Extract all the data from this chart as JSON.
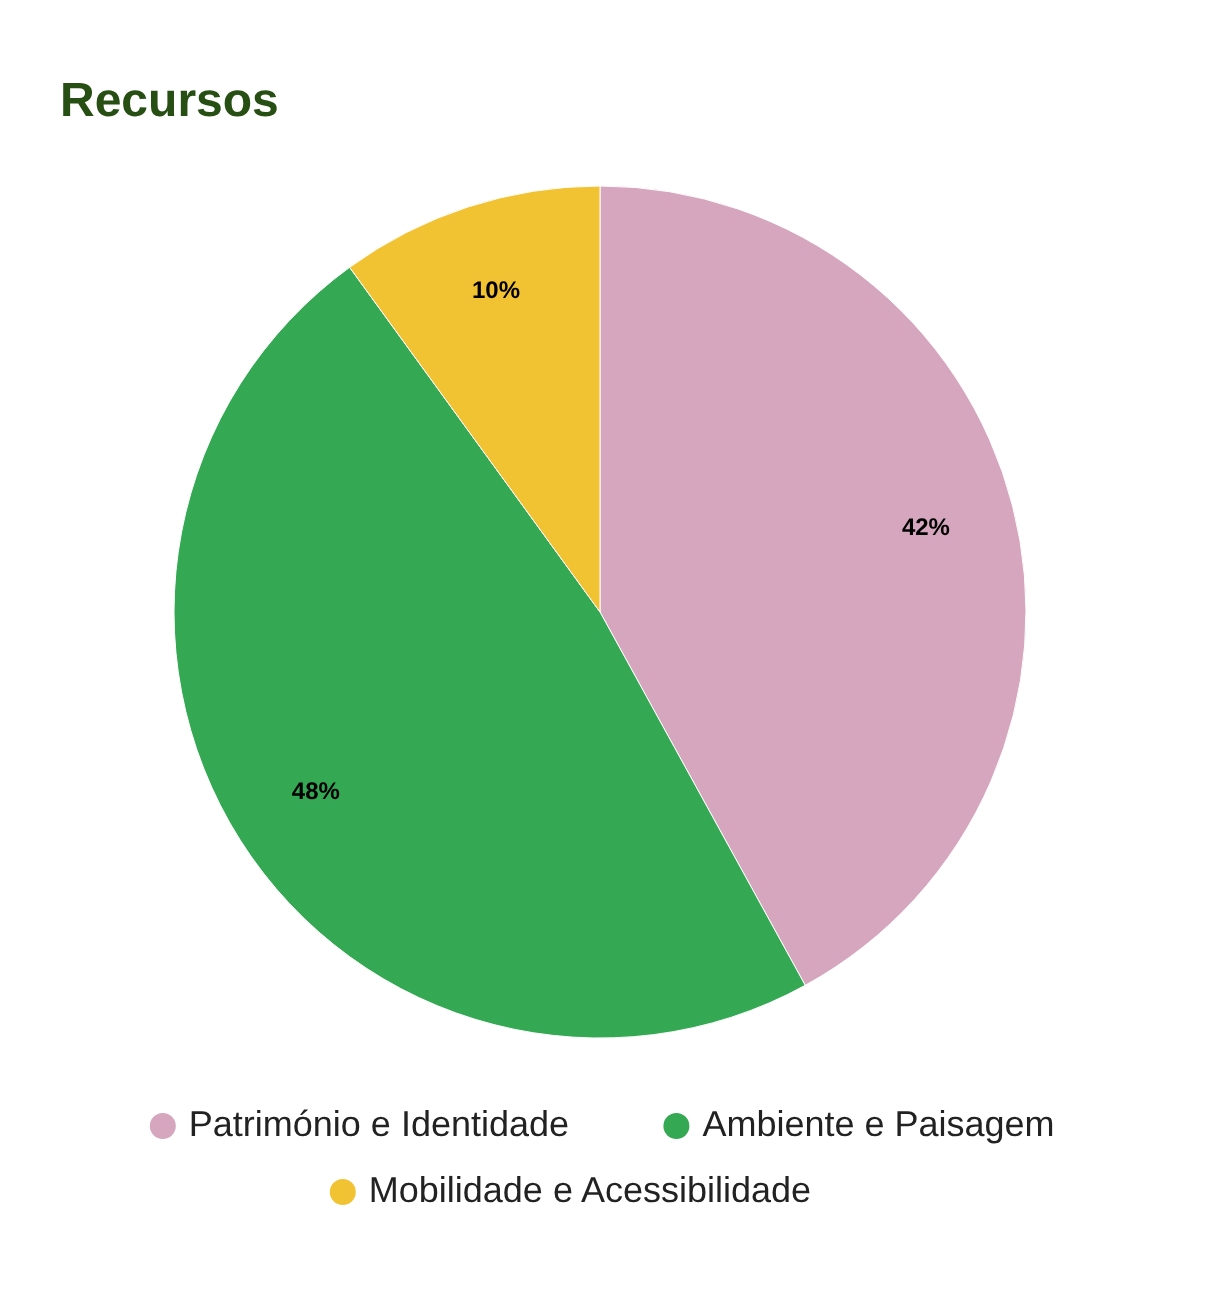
{
  "chart_data": {
    "type": "pie",
    "title": "Recursos",
    "categories": [
      "Património e Identidade",
      "Ambiente e Paisagem",
      "Mobilidade e Acessibilidade"
    ],
    "values": [
      42,
      48,
      10
    ],
    "colors": [
      "#d5a6bd",
      "#34a853",
      "#f1c232"
    ],
    "value_labels": [
      "42%",
      "48%",
      "10%"
    ],
    "legend": "bottom"
  }
}
